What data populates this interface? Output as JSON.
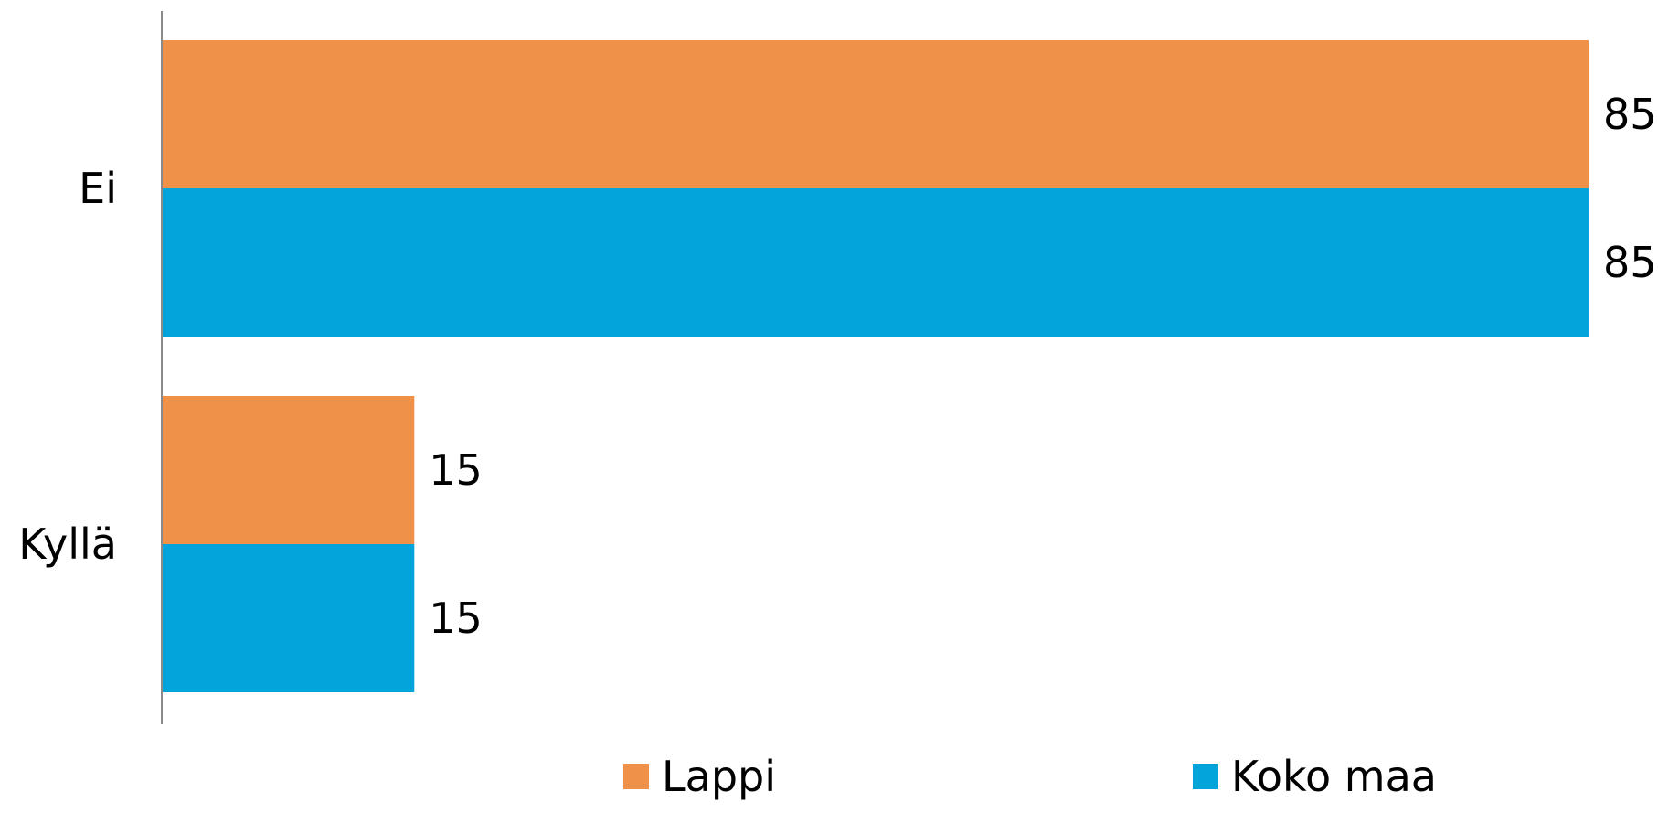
{
  "chart_data": {
    "type": "bar",
    "orientation": "horizontal",
    "categories": [
      "Ei",
      "Kyllä"
    ],
    "series": [
      {
        "name": "Lappi",
        "values": [
          85,
          15
        ],
        "color": "#F0914A"
      },
      {
        "name": "Koko maa",
        "values": [
          85,
          15
        ],
        "color": "#02A4DB"
      }
    ],
    "data_labels": [
      [
        "85",
        "15"
      ],
      [
        "85",
        "15"
      ]
    ],
    "title": "",
    "xlabel": "",
    "ylabel": "",
    "xlim": [
      0,
      85
    ],
    "grid": false,
    "legend_position": "bottom"
  }
}
